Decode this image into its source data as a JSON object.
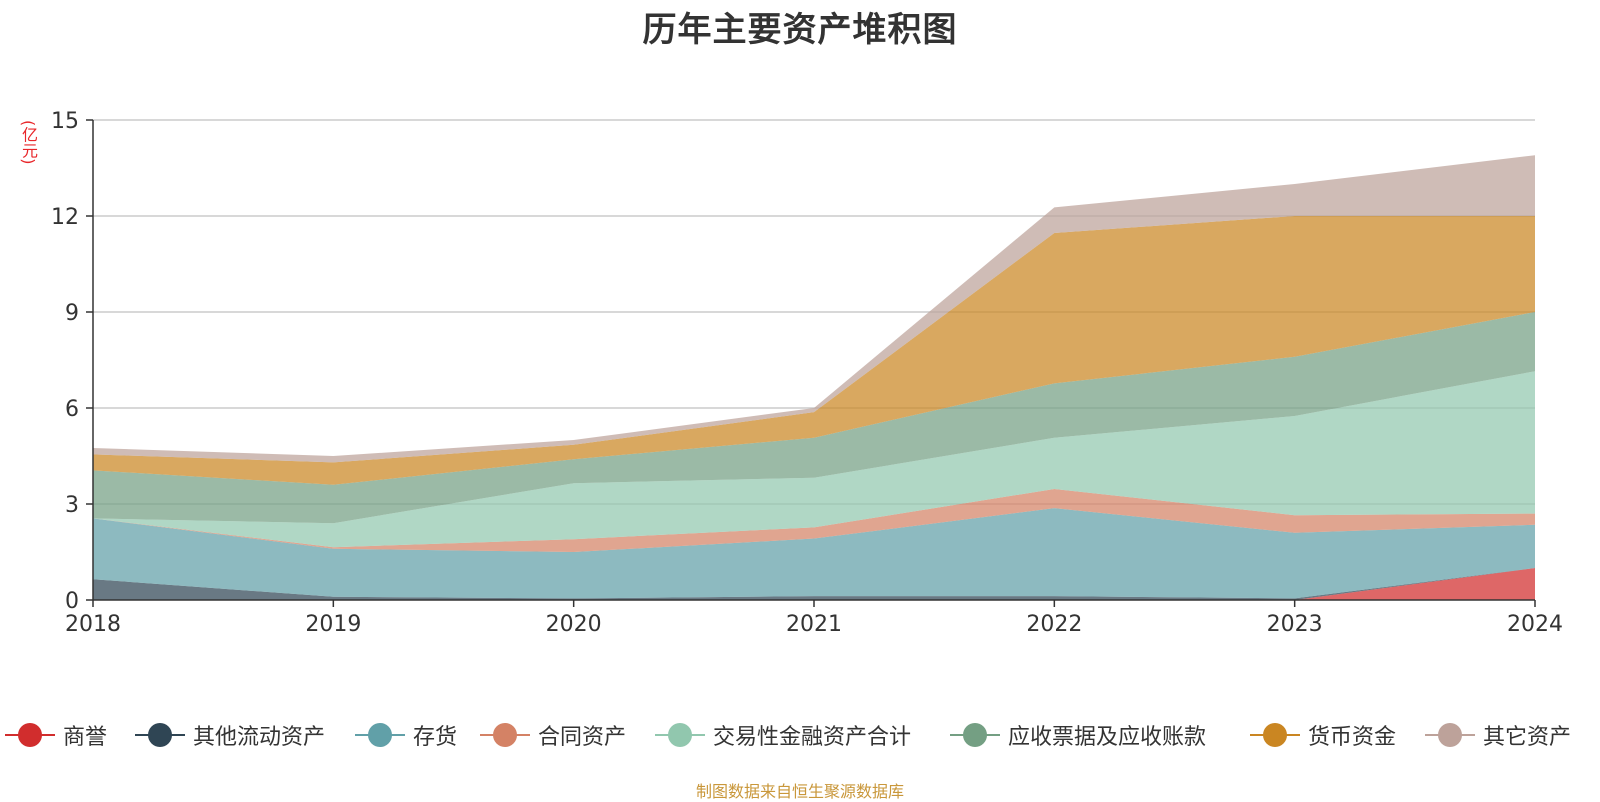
{
  "chart_data": {
    "type": "area",
    "stacked": true,
    "title": "历年主要资产堆积图",
    "unit_label": "(亿元)",
    "x": [
      "2018",
      "2019",
      "2020",
      "2021",
      "2022",
      "2023",
      "2024"
    ],
    "ylim": [
      0,
      15
    ],
    "yticks": [
      "0",
      "3",
      "6",
      "9",
      "12",
      "15"
    ],
    "grid": true,
    "legend_position": "bottom",
    "series": [
      {
        "name": "商誉",
        "color": "#d12d2d",
        "values": [
          0,
          0,
          0,
          0,
          0,
          0,
          1.0
        ]
      },
      {
        "name": "其他流动资产",
        "color": "#2f4554",
        "values": [
          0.65,
          0.1,
          0.05,
          0.12,
          0.12,
          0.05,
          0.0
        ]
      },
      {
        "name": "存货",
        "color": "#61a0a8",
        "values": [
          1.9,
          1.5,
          1.45,
          1.8,
          2.75,
          2.05,
          1.35
        ]
      },
      {
        "name": "合同资产",
        "color": "#d48265",
        "values": [
          0,
          0.05,
          0.4,
          0.35,
          0.6,
          0.55,
          0.35
        ]
      },
      {
        "name": "交易性金融资产合计",
        "color": "#91c7ae",
        "values": [
          0,
          0.75,
          1.75,
          1.55,
          1.6,
          3.1,
          4.45
        ]
      },
      {
        "name": "应收票据及应收账款",
        "color": "#749f83",
        "values": [
          1.5,
          1.2,
          0.75,
          1.25,
          1.7,
          1.85,
          1.85
        ]
      },
      {
        "name": "货币资金",
        "color": "#ca8622",
        "values": [
          0.5,
          0.7,
          0.45,
          0.8,
          4.7,
          4.4,
          3.0
        ]
      },
      {
        "name": "其它资产",
        "color": "#bda29a",
        "values": [
          0.2,
          0.2,
          0.15,
          0.13,
          0.8,
          1.0,
          1.9
        ]
      }
    ]
  },
  "footer": "制图数据来自恒生聚源数据库"
}
